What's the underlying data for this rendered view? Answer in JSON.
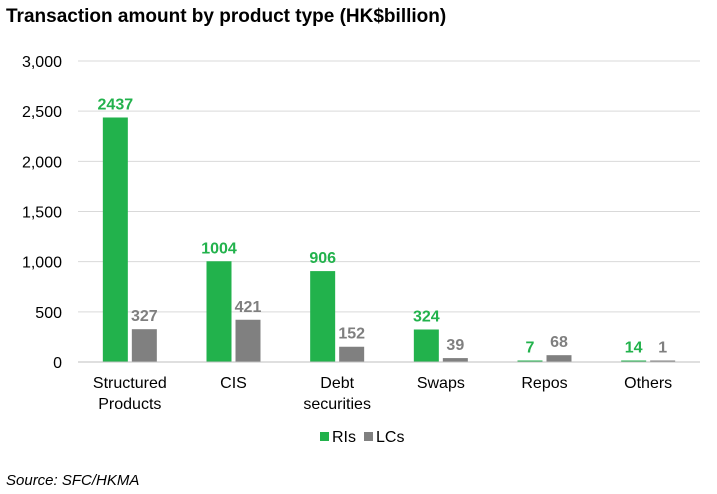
{
  "chart_data": {
    "type": "bar",
    "title": "Transaction amount by product type (HK$billion)",
    "categories": [
      [
        "Structured",
        "Products"
      ],
      [
        "CIS"
      ],
      [
        "Debt",
        "securities"
      ],
      [
        "Swaps"
      ],
      [
        "Repos"
      ],
      [
        "Others"
      ]
    ],
    "series": [
      {
        "name": "RIs",
        "color": "#22B24C",
        "label_color": "#22B24C",
        "values": [
          2437,
          1004,
          906,
          324,
          7,
          14
        ]
      },
      {
        "name": "LCs",
        "color": "#808080",
        "label_color": "#7F7F7F",
        "values": [
          327,
          421,
          152,
          39,
          68,
          1
        ]
      }
    ],
    "yticks": [
      "0",
      "500",
      "1,000",
      "1,500",
      "2,000",
      "2,500",
      "3,000"
    ],
    "ylim": [
      0,
      3000
    ],
    "grid": true,
    "legend": "bottom-center"
  },
  "source": "Source: SFC/HKMA"
}
